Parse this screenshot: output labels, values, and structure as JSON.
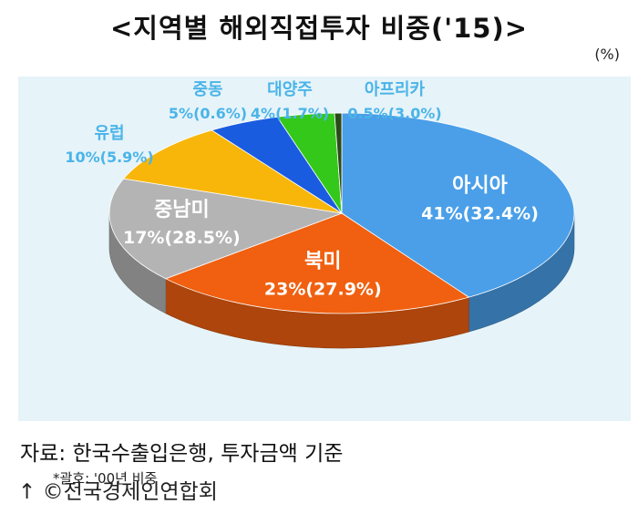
{
  "title": "<지역별 해외직접투자 비중('15)>",
  "unit": "(%)",
  "footnote": "*괄호: '00년 비중",
  "source": "자료: 한국수출입은행, 투자금액 기준",
  "credit": "↑ ©전국경제인연합회",
  "colors": {
    "asia": "#4a9fe8",
    "north_america": "#f06010",
    "latin_america": "#b4b4b4",
    "europe": "#f8b60a",
    "middle_east": "#1a5ce0",
    "oceania": "#33c81a",
    "africa": "#2b4a1a",
    "outer_label": "#4ab4e8",
    "inner_label": "#ffffff"
  },
  "chart_data": {
    "type": "pie",
    "title": "<지역별 해외직접투자 비중('15)>",
    "unit": "%",
    "slices": [
      {
        "name": "아시아",
        "value": 41,
        "value_2000": 32.4,
        "label": "41%(32.4%)",
        "color": "#4a9fe8",
        "label_placement": "inside"
      },
      {
        "name": "북미",
        "value": 23,
        "value_2000": 27.9,
        "label": "23%(27.9%)",
        "color": "#f06010",
        "label_placement": "inside"
      },
      {
        "name": "중남미",
        "value": 17,
        "value_2000": 28.5,
        "label": "17%(28.5%)",
        "color": "#b4b4b4",
        "label_placement": "inside"
      },
      {
        "name": "유럽",
        "value": 10,
        "value_2000": 5.9,
        "label": "10%(5.9%)",
        "color": "#f8b60a",
        "label_placement": "outside"
      },
      {
        "name": "중동",
        "value": 5,
        "value_2000": 0.6,
        "label": "5%(0.6%)",
        "color": "#1a5ce0",
        "label_placement": "outside"
      },
      {
        "name": "대양주",
        "value": 4,
        "value_2000": 1.7,
        "label": "4%(1.7%)",
        "color": "#33c81a",
        "label_placement": "outside"
      },
      {
        "name": "아프리카",
        "value": 0.5,
        "value_2000": 3.0,
        "label": "0.5%(3.0%)",
        "color": "#2b4a1a",
        "label_placement": "outside"
      }
    ]
  }
}
